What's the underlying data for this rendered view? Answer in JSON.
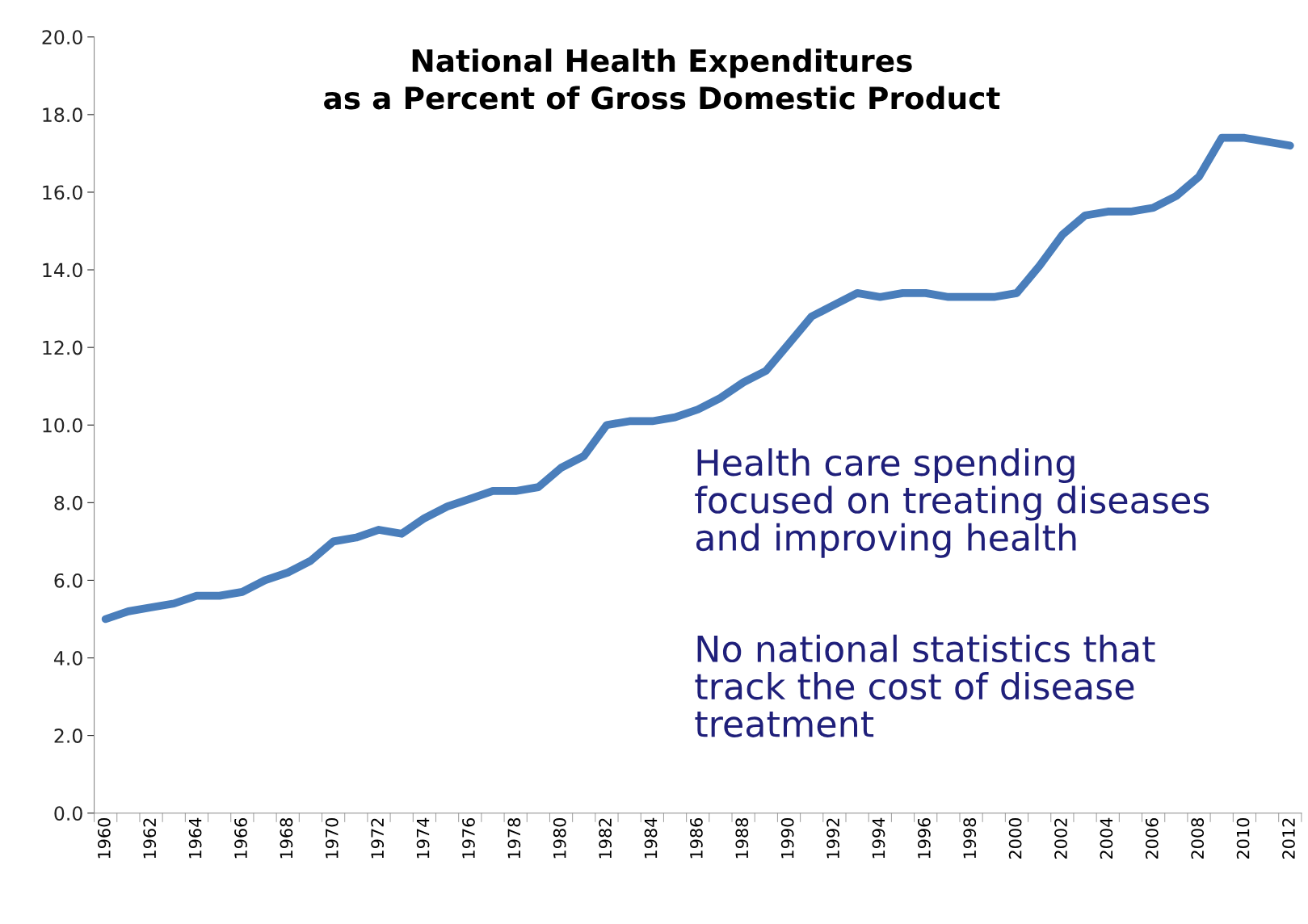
{
  "chart_data": {
    "type": "line",
    "title": "National Health Expenditures\nas a Percent of Gross Domestic Product",
    "categories": [
      "1960",
      null,
      "1962",
      null,
      "1964",
      null,
      "1966",
      null,
      "1968",
      null,
      "1970",
      null,
      "1972",
      null,
      "1974",
      null,
      "1976",
      null,
      "1978",
      null,
      "1980",
      null,
      "1982",
      null,
      "1984",
      null,
      "1986",
      null,
      "1988",
      null,
      "1990",
      null,
      "1992",
      null,
      "1994",
      null,
      "1996",
      null,
      "1998",
      null,
      "2000",
      null,
      "2002",
      null,
      "2004",
      null,
      "2006",
      null,
      "2008",
      null,
      "2010",
      null,
      "2012"
    ],
    "series": [
      {
        "color": "#4a7ebb",
        "values": [
          5.0,
          5.2,
          5.3,
          5.4,
          5.6,
          5.6,
          5.7,
          6.0,
          6.2,
          6.5,
          7.0,
          7.1,
          7.3,
          7.2,
          7.6,
          7.9,
          8.1,
          8.3,
          8.3,
          8.4,
          8.9,
          9.2,
          10.0,
          10.1,
          10.1,
          10.2,
          10.4,
          10.7,
          11.1,
          11.4,
          12.1,
          12.8,
          13.1,
          13.4,
          13.3,
          13.4,
          13.4,
          13.3,
          13.3,
          13.3,
          13.4,
          14.1,
          14.9,
          15.4,
          15.5,
          15.5,
          15.6,
          15.9,
          16.4,
          17.4,
          17.4,
          17.3,
          17.2
        ]
      }
    ],
    "ylim": [
      0,
      20
    ],
    "yticks": [
      {
        "value": 0,
        "label": "0.0"
      },
      {
        "value": 2,
        "label": "2.0"
      },
      {
        "value": 4,
        "label": "4.0"
      },
      {
        "value": 6,
        "label": "6.0"
      },
      {
        "value": 8,
        "label": "8.0"
      },
      {
        "value": 10,
        "label": "10.0"
      },
      {
        "value": 12,
        "label": "12.0"
      },
      {
        "value": 14,
        "label": "14.0"
      },
      {
        "value": 16,
        "label": "16.0"
      },
      {
        "value": 18,
        "label": "18.0"
      },
      {
        "value": 20,
        "label": "20.0"
      }
    ],
    "annotations": [
      "Health care spending\nfocused on treating diseases\nand improving health",
      "No national statistics that\ntrack the cost of disease\ntreatment"
    ],
    "grid": false,
    "marker": "none",
    "line_style": "solid"
  }
}
